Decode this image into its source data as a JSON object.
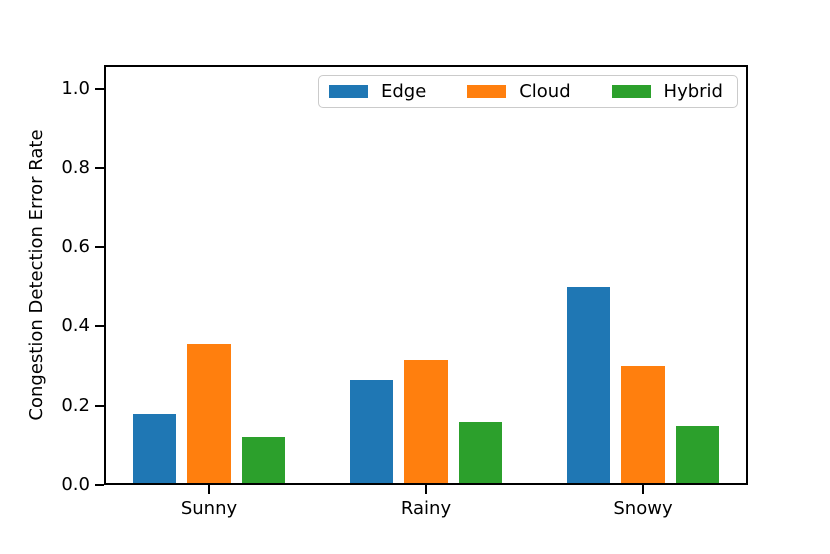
{
  "chart_data": {
    "type": "bar",
    "title": "",
    "categories": [
      "Sunny",
      "Rainy",
      "Snowy"
    ],
    "series": [
      {
        "name": "Edge",
        "color": "#1f77b4",
        "values": [
          0.18,
          0.265,
          0.5
        ]
      },
      {
        "name": "Cloud",
        "color": "#ff7f0e",
        "values": [
          0.355,
          0.315,
          0.3
        ]
      },
      {
        "name": "Hybrid",
        "color": "#2ca02c",
        "values": [
          0.12,
          0.16,
          0.15
        ]
      }
    ],
    "xlabel": "",
    "ylabel": "Congestion Detection Error Rate",
    "ylim": [
      0,
      1.06
    ],
    "yticks": [
      0.0,
      0.2,
      0.4,
      0.6,
      0.8,
      1.0
    ],
    "ytick_labels": [
      "0.0",
      "0.2",
      "0.4",
      "0.6",
      "0.8",
      "1.0"
    ],
    "bar_width_ratio": 0.2,
    "bar_offset_ratio": 0.25,
    "grid": false,
    "legend_position": "upper center inside plot",
    "legend_entries": [
      "Edge",
      "Cloud",
      "Hybrid"
    ],
    "axis_color": "#000000",
    "background_color": "#ffffff"
  }
}
